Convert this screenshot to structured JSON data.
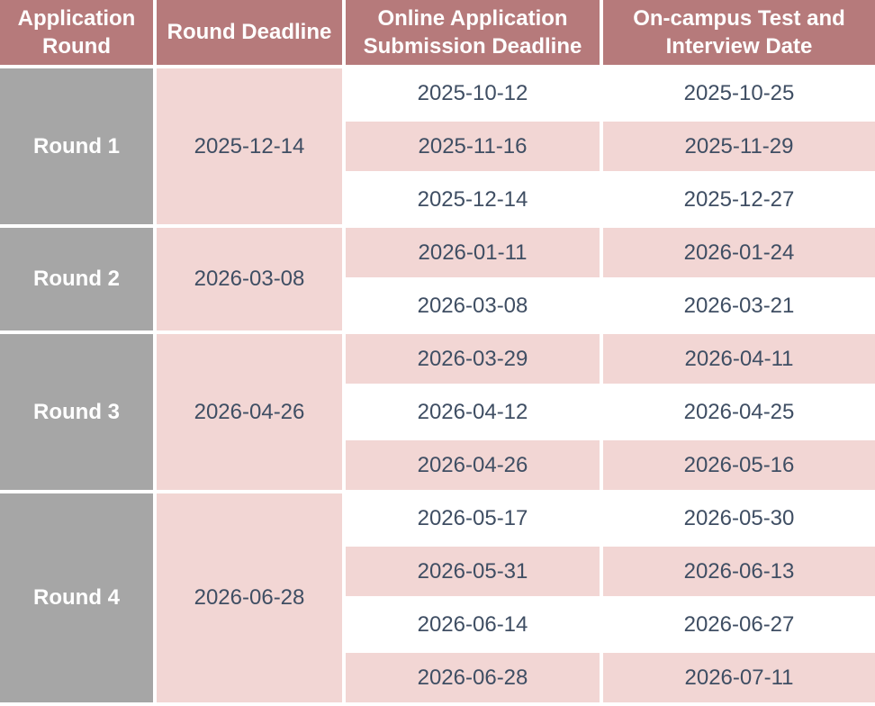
{
  "table": {
    "headers": [
      "Application Round",
      "Round Deadline",
      "Online Application Submission Deadline",
      "On-campus Test and Interview Date"
    ],
    "rounds": [
      {
        "label": "Round 1",
        "deadline": "2025-12-14",
        "sessions": [
          {
            "submission": "2025-10-12",
            "test": "2025-10-25"
          },
          {
            "submission": "2025-11-16",
            "test": "2025-11-29"
          },
          {
            "submission": "2025-12-14",
            "test": "2025-12-27"
          }
        ]
      },
      {
        "label": "Round 2",
        "deadline": "2026-03-08",
        "sessions": [
          {
            "submission": "2026-01-11",
            "test": "2026-01-24"
          },
          {
            "submission": "2026-03-08",
            "test": "2026-03-21"
          }
        ]
      },
      {
        "label": "Round 3",
        "deadline": "2026-04-26",
        "sessions": [
          {
            "submission": "2026-03-29",
            "test": "2026-04-11"
          },
          {
            "submission": "2026-04-12",
            "test": "2026-04-25"
          },
          {
            "submission": "2026-04-26",
            "test": "2026-05-16"
          }
        ]
      },
      {
        "label": "Round 4",
        "deadline": "2026-06-28",
        "sessions": [
          {
            "submission": "2026-05-17",
            "test": "2026-05-30"
          },
          {
            "submission": "2026-05-31",
            "test": "2026-06-13"
          },
          {
            "submission": "2026-06-14",
            "test": "2026-06-27"
          },
          {
            "submission": "2026-06-28",
            "test": "2026-07-11"
          }
        ]
      }
    ],
    "colors": {
      "header_bg": "#b67a7b",
      "header_text": "#ffffff",
      "round_bg": "#a6a6a6",
      "round_text": "#ffffff",
      "pink_bg": "#f2d6d4",
      "white_bg": "#ffffff",
      "date_text": "#3f4e63"
    }
  }
}
